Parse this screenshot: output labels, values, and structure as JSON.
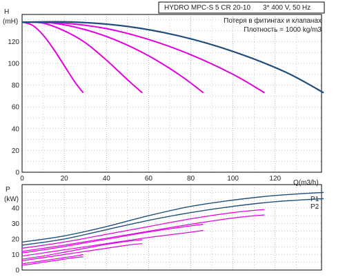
{
  "header": {
    "model": "HYDRO MPC-S 5 CR 20-10",
    "supply": "3* 400 V, 50 Hz",
    "note_line1": "Потеря в фитингах и клапанах",
    "note_line2": "Плотность = 1000 kg/m3"
  },
  "colors": {
    "full": "#1f4e79",
    "partial": "#e000e0",
    "grid": "#8a8a8a",
    "axis": "#000000"
  },
  "chart_data": [
    {
      "type": "line",
      "axes": {
        "ylabel_symbol": "H",
        "ylabel_unit": "(mH)",
        "xlabel": "Q(m3/h)",
        "xlim": [
          0,
          142
        ],
        "ylim": [
          0,
          145
        ],
        "xticks": [
          0,
          20,
          40,
          60,
          80,
          100,
          120
        ],
        "yticks": [
          0,
          20,
          40,
          60,
          80,
          100,
          120
        ],
        "grid": true
      },
      "series": [
        {
          "pumps": 1,
          "color": "partial",
          "x": [
            0,
            5,
            10,
            15,
            20,
            25,
            29
          ],
          "y": [
            138,
            135,
            126,
            113,
            98,
            83,
            73
          ]
        },
        {
          "pumps": 2,
          "color": "partial",
          "x": [
            0,
            10,
            20,
            30,
            40,
            50,
            57
          ],
          "y": [
            138,
            137,
            130,
            119,
            103,
            85,
            73
          ]
        },
        {
          "pumps": 3,
          "color": "partial",
          "x": [
            0,
            15,
            30,
            45,
            60,
            75,
            86
          ],
          "y": [
            138,
            137,
            131,
            121,
            107,
            89,
            73
          ]
        },
        {
          "pumps": 4,
          "color": "partial",
          "x": [
            0,
            20,
            40,
            60,
            80,
            100,
            115
          ],
          "y": [
            138,
            137,
            132,
            122,
            108,
            90,
            73
          ]
        },
        {
          "pumps": 5,
          "color": "full",
          "x": [
            0,
            25,
            50,
            75,
            100,
            125,
            143
          ],
          "y": [
            138,
            138,
            134,
            125,
            111,
            92,
            73
          ]
        }
      ]
    },
    {
      "type": "line",
      "axes": {
        "ylabel_symbol": "P",
        "ylabel_unit": "(kW)",
        "xlim": [
          0,
          142
        ],
        "ylim": [
          0,
          55
        ],
        "yticks": [
          0,
          10,
          20,
          30,
          40
        ],
        "grid": true
      },
      "series": [
        {
          "name": "P1",
          "color": "full",
          "x": [
            0,
            20,
            40,
            60,
            80,
            100,
            120,
            143
          ],
          "y": [
            18,
            22,
            28,
            35,
            41,
            45,
            48,
            50
          ]
        },
        {
          "name": "P2",
          "color": "full",
          "x": [
            0,
            20,
            40,
            60,
            80,
            100,
            120,
            143
          ],
          "y": [
            16,
            20,
            26,
            32,
            37,
            41,
            44,
            46
          ]
        },
        {
          "pumps": 4,
          "color": "partial",
          "x": [
            0,
            20,
            40,
            60,
            80,
            100,
            115
          ],
          "y": [
            14,
            18,
            23,
            28,
            33,
            37,
            39
          ]
        },
        {
          "pumps": 4,
          "color": "partial",
          "x": [
            0,
            20,
            40,
            60,
            80,
            100,
            115
          ],
          "y": [
            12,
            16,
            20.5,
            25,
            29.5,
            33.5,
            35.5
          ]
        },
        {
          "pumps": 3,
          "color": "partial",
          "x": [
            0,
            15,
            30,
            45,
            60,
            75,
            86
          ],
          "y": [
            11,
            14,
            17.5,
            21,
            24.5,
            27.5,
            29.5
          ]
        },
        {
          "pumps": 3,
          "color": "partial",
          "x": [
            0,
            15,
            30,
            45,
            60,
            75,
            86
          ],
          "y": [
            9,
            12,
            15,
            18,
            21,
            23.5,
            25.5
          ]
        },
        {
          "pumps": 2,
          "color": "partial",
          "x": [
            0,
            10,
            20,
            30,
            40,
            50,
            57
          ],
          "y": [
            7,
            9,
            11.5,
            14,
            16.5,
            18.5,
            19.5
          ]
        },
        {
          "pumps": 2,
          "color": "partial",
          "x": [
            0,
            10,
            20,
            30,
            40,
            50,
            57
          ],
          "y": [
            6,
            8,
            10,
            12,
            14,
            16,
            17
          ]
        },
        {
          "pumps": 1,
          "color": "partial",
          "x": [
            0,
            5,
            10,
            15,
            20,
            25,
            29
          ],
          "y": [
            4,
            5,
            6,
            7,
            8,
            9,
            10
          ]
        },
        {
          "pumps": 1,
          "color": "partial",
          "x": [
            0,
            5,
            10,
            15,
            20,
            25,
            29
          ],
          "y": [
            3,
            4,
            5,
            6,
            7,
            8,
            8.5
          ]
        }
      ]
    }
  ]
}
